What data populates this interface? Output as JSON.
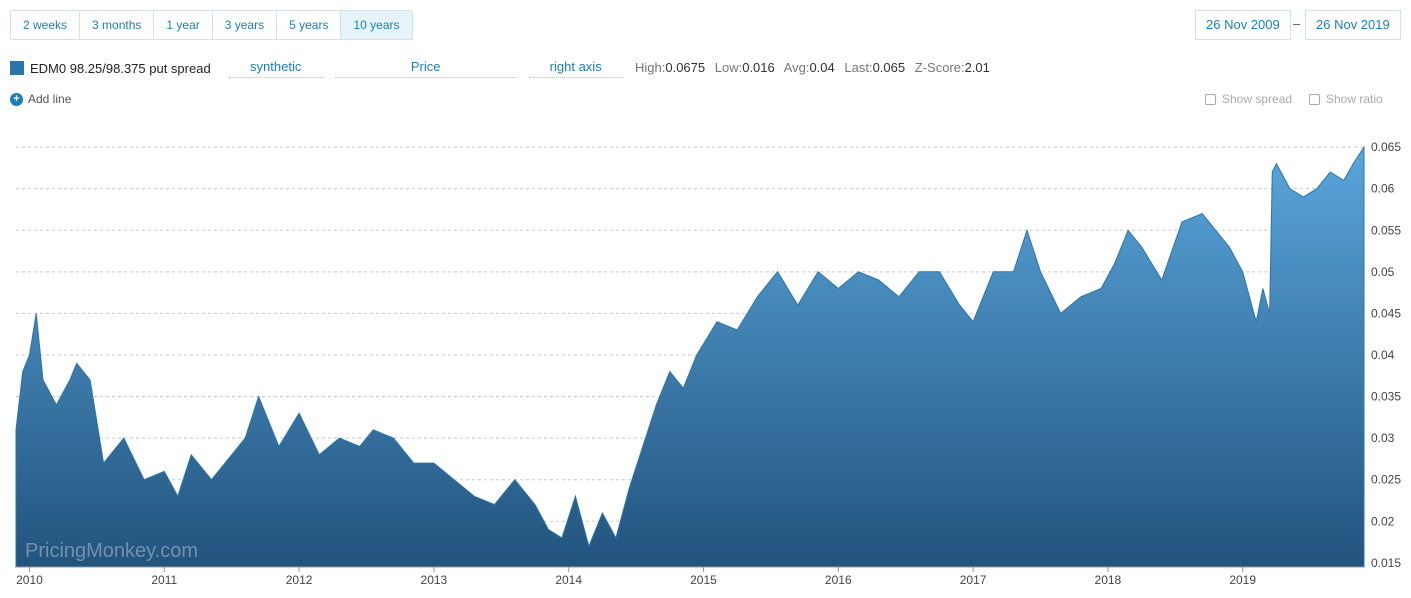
{
  "range_buttons": [
    {
      "label": "2 weeks"
    },
    {
      "label": "3 months"
    },
    {
      "label": "1 year"
    },
    {
      "label": "3 years"
    },
    {
      "label": "5 years"
    },
    {
      "label": "10 years",
      "active": true
    }
  ],
  "date_range": {
    "from": "26 Nov 2009",
    "separator": "–",
    "to": "26 Nov 2019"
  },
  "series": {
    "name": "EDM0 98.25/98.375 put spread",
    "color": "#2b74ac",
    "type_dropdown": "synthetic",
    "field_dropdown": "Price",
    "axis_dropdown": "right axis"
  },
  "stats": {
    "high_label": "High:",
    "high": "0.0675",
    "low_label": "Low:",
    "low": "0.016",
    "avg_label": "Avg:",
    "avg": "0.04",
    "last_label": "Last:",
    "last": "0.065",
    "z_label": "Z-Score:",
    "z": "2.01"
  },
  "add_line_label": "Add line",
  "show_spread_label": "Show spread",
  "show_ratio_label": "Show ratio",
  "watermark": "PricingMonkey.com",
  "chart_data": {
    "type": "area",
    "y_axis_position": "right",
    "ylim": [
      0.0145,
      0.0685
    ],
    "xlim": [
      2009.9,
      2019.9
    ],
    "grid": "horizontal dashed",
    "x_ticks": [
      {
        "value": 2010,
        "label": "2010"
      },
      {
        "value": 2011,
        "label": "2011"
      },
      {
        "value": 2012,
        "label": "2012"
      },
      {
        "value": 2013,
        "label": "2013"
      },
      {
        "value": 2014,
        "label": "2014"
      },
      {
        "value": 2015,
        "label": "2015"
      },
      {
        "value": 2016,
        "label": "2016"
      },
      {
        "value": 2017,
        "label": "2017"
      },
      {
        "value": 2018,
        "label": "2018"
      },
      {
        "value": 2019,
        "label": "2019"
      }
    ],
    "y_ticks": [
      {
        "value": 0.015,
        "label": "0.015"
      },
      {
        "value": 0.02,
        "label": "0.02"
      },
      {
        "value": 0.025,
        "label": "0.025"
      },
      {
        "value": 0.03,
        "label": "0.03"
      },
      {
        "value": 0.035,
        "label": "0.035"
      },
      {
        "value": 0.04,
        "label": "0.04"
      },
      {
        "value": 0.045,
        "label": "0.045"
      },
      {
        "value": 0.05,
        "label": "0.05"
      },
      {
        "value": 0.055,
        "label": "0.055"
      },
      {
        "value": 0.06,
        "label": "0.06"
      },
      {
        "value": 0.065,
        "label": "0.065"
      }
    ],
    "x": [
      2009.9,
      2009.95,
      2010.0,
      2010.05,
      2010.1,
      2010.2,
      2010.3,
      2010.35,
      2010.45,
      2010.55,
      2010.7,
      2010.85,
      2011.0,
      2011.1,
      2011.2,
      2011.35,
      2011.5,
      2011.6,
      2011.7,
      2011.85,
      2012.0,
      2012.15,
      2012.3,
      2012.45,
      2012.55,
      2012.7,
      2012.85,
      2013.0,
      2013.15,
      2013.3,
      2013.45,
      2013.6,
      2013.75,
      2013.85,
      2013.95,
      2014.05,
      2014.15,
      2014.25,
      2014.35,
      2014.45,
      2014.55,
      2014.65,
      2014.75,
      2014.85,
      2014.95,
      2015.1,
      2015.25,
      2015.4,
      2015.55,
      2015.7,
      2015.85,
      2016.0,
      2016.15,
      2016.3,
      2016.45,
      2016.6,
      2016.75,
      2016.9,
      2017.0,
      2017.15,
      2017.3,
      2017.4,
      2017.5,
      2017.65,
      2017.8,
      2017.95,
      2018.05,
      2018.15,
      2018.25,
      2018.4,
      2018.55,
      2018.7,
      2018.8,
      2018.9,
      2019.0,
      2019.1,
      2019.15,
      2019.2,
      2019.22,
      2019.25,
      2019.35,
      2019.45,
      2019.55,
      2019.65,
      2019.75,
      2019.82,
      2019.9
    ],
    "values": [
      0.031,
      0.038,
      0.04,
      0.045,
      0.037,
      0.034,
      0.037,
      0.039,
      0.037,
      0.027,
      0.03,
      0.025,
      0.026,
      0.023,
      0.028,
      0.025,
      0.028,
      0.03,
      0.035,
      0.029,
      0.033,
      0.028,
      0.03,
      0.029,
      0.031,
      0.03,
      0.027,
      0.027,
      0.025,
      0.023,
      0.022,
      0.025,
      0.022,
      0.019,
      0.018,
      0.023,
      0.017,
      0.021,
      0.018,
      0.024,
      0.029,
      0.034,
      0.038,
      0.036,
      0.04,
      0.044,
      0.043,
      0.047,
      0.05,
      0.046,
      0.05,
      0.048,
      0.05,
      0.049,
      0.047,
      0.05,
      0.05,
      0.046,
      0.044,
      0.05,
      0.05,
      0.055,
      0.05,
      0.045,
      0.047,
      0.048,
      0.051,
      0.055,
      0.053,
      0.049,
      0.056,
      0.057,
      0.055,
      0.053,
      0.05,
      0.044,
      0.048,
      0.045,
      0.062,
      0.063,
      0.06,
      0.059,
      0.06,
      0.062,
      0.061,
      0.063,
      0.065
    ]
  }
}
